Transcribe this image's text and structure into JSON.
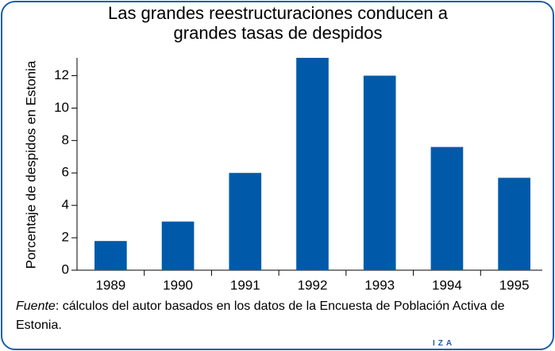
{
  "chart_data": {
    "type": "bar",
    "title": "Las grandes reestructuraciones conducen a grandes tasas de despidos",
    "y_label": "Porcentaje de despidos en Estonia",
    "categories": [
      "1989",
      "1990",
      "1991",
      "1992",
      "1993",
      "1994",
      "1995"
    ],
    "values": [
      1.8,
      3.0,
      6.0,
      13.1,
      12.0,
      7.6,
      5.7
    ],
    "color": "#005aa9",
    "ylim": [
      0,
      13.1
    ],
    "yticks": [
      0,
      2,
      4,
      6,
      8,
      10,
      12
    ],
    "grid": false,
    "source": {
      "label": "Fuente",
      "text": ": cálculos del autor basados en los datos de la Encuesta de Población Activa de Estonia."
    },
    "logo": "IZA"
  }
}
